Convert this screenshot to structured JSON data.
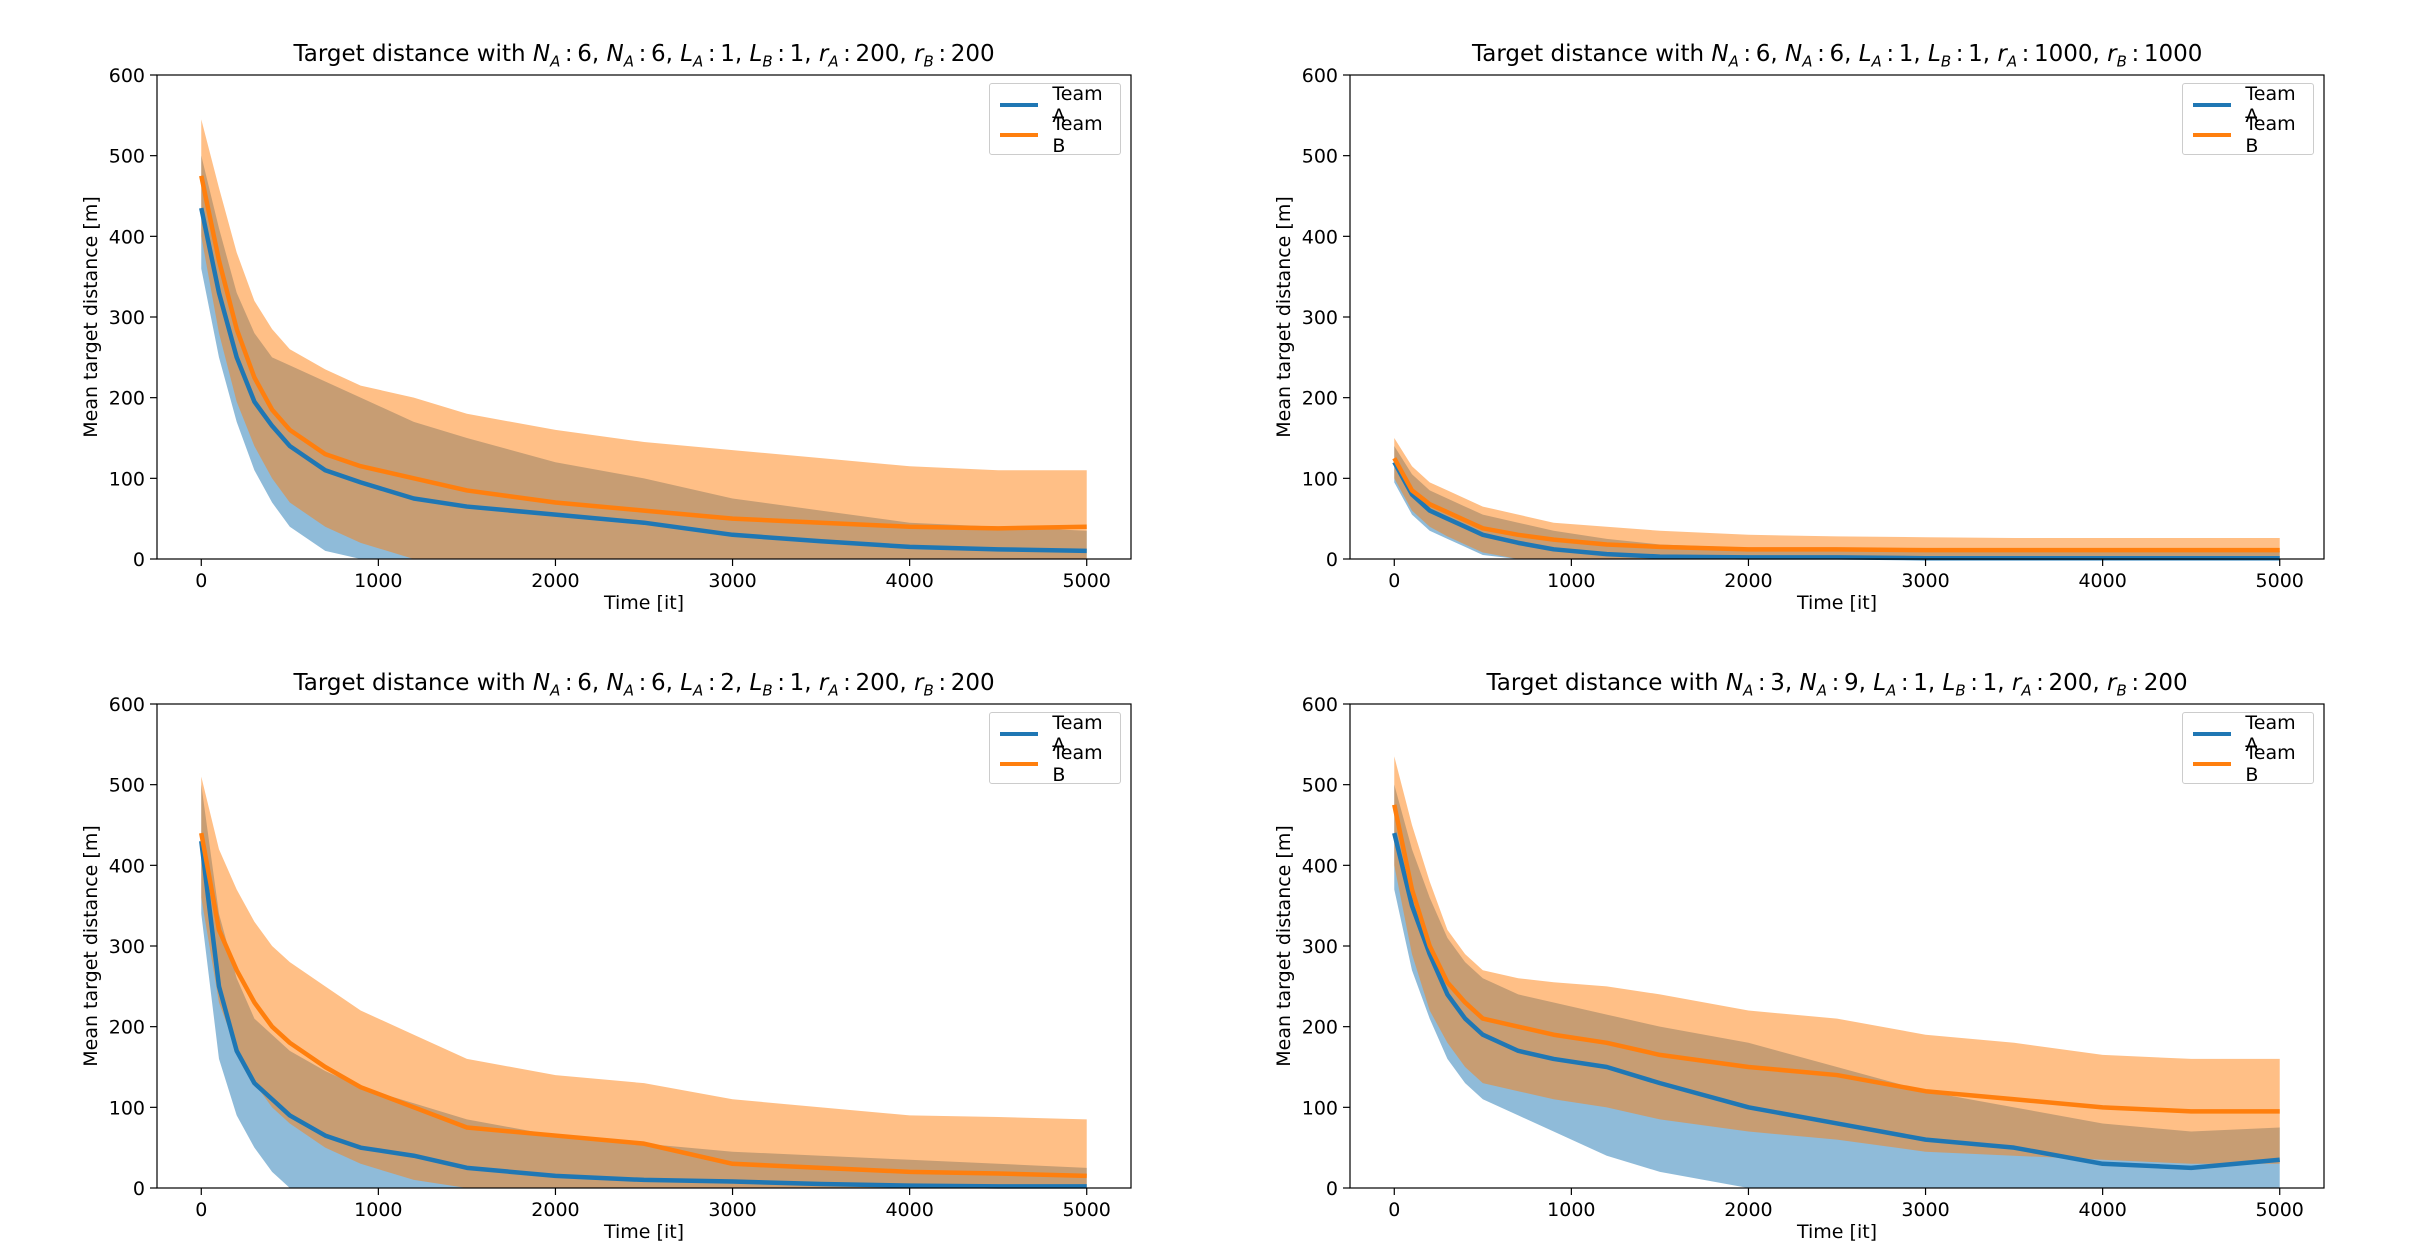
{
  "chart_data": [
    {
      "type": "line",
      "title": "Target distance with",
      "title_math": "N_A:6, N_A:6, L_A:1, L_B:1, r_A:200, r_B:200",
      "xlabel": "Time [it]",
      "ylabel": "Mean target distance [m]",
      "xlim": [
        -250,
        5250
      ],
      "ylim": [
        0,
        600
      ],
      "xticks": [
        0,
        1000,
        2000,
        3000,
        4000,
        5000
      ],
      "yticks": [
        0,
        100,
        200,
        300,
        400,
        500,
        600
      ],
      "legend": "top-right",
      "x": [
        0,
        100,
        200,
        300,
        400,
        500,
        700,
        900,
        1200,
        1500,
        2000,
        2500,
        3000,
        3500,
        4000,
        4500,
        5000
      ],
      "series": [
        {
          "name": "Team A",
          "color": "#1f77b4",
          "values": [
            435,
            330,
            250,
            195,
            165,
            140,
            110,
            95,
            75,
            65,
            55,
            45,
            30,
            22,
            15,
            12,
            10
          ],
          "lower": [
            360,
            250,
            170,
            110,
            70,
            40,
            10,
            0,
            0,
            0,
            0,
            0,
            0,
            0,
            0,
            0,
            0
          ],
          "upper": [
            500,
            410,
            330,
            280,
            250,
            240,
            220,
            200,
            170,
            150,
            120,
            100,
            75,
            60,
            45,
            40,
            35
          ]
        },
        {
          "name": "Team B",
          "color": "#ff7f0e",
          "values": [
            475,
            370,
            285,
            225,
            185,
            160,
            130,
            115,
            100,
            85,
            70,
            60,
            50,
            45,
            40,
            38,
            40
          ],
          "lower": [
            400,
            280,
            195,
            140,
            100,
            70,
            40,
            20,
            0,
            0,
            0,
            0,
            0,
            0,
            0,
            0,
            0
          ],
          "upper": [
            545,
            460,
            380,
            320,
            285,
            260,
            235,
            215,
            200,
            180,
            160,
            145,
            135,
            125,
            115,
            110,
            110
          ]
        }
      ]
    },
    {
      "type": "line",
      "title": "Target distance with",
      "title_math": "N_A:6, N_A:6, L_A:1, L_B:1, r_A:1000, r_B:1000",
      "xlabel": "Time [it]",
      "ylabel": "Mean target distance [m]",
      "xlim": [
        -250,
        5250
      ],
      "ylim": [
        0,
        600
      ],
      "xticks": [
        0,
        1000,
        2000,
        3000,
        4000,
        5000
      ],
      "yticks": [
        0,
        100,
        200,
        300,
        400,
        500,
        600
      ],
      "legend": "top-right",
      "x": [
        0,
        100,
        200,
        300,
        400,
        500,
        700,
        900,
        1200,
        1500,
        2000,
        2500,
        3000,
        3500,
        4000,
        4500,
        5000
      ],
      "series": [
        {
          "name": "Team A",
          "color": "#1f77b4",
          "values": [
            120,
            80,
            60,
            50,
            40,
            30,
            20,
            12,
            6,
            3,
            2,
            2,
            1,
            1,
            1,
            1,
            1
          ],
          "lower": [
            95,
            55,
            35,
            25,
            15,
            5,
            0,
            0,
            0,
            0,
            0,
            0,
            0,
            0,
            0,
            0,
            0
          ],
          "upper": [
            140,
            105,
            85,
            75,
            65,
            55,
            45,
            35,
            25,
            18,
            14,
            12,
            10,
            10,
            10,
            10,
            10
          ]
        },
        {
          "name": "Team B",
          "color": "#ff7f0e",
          "values": [
            125,
            85,
            68,
            58,
            48,
            38,
            30,
            24,
            18,
            15,
            12,
            12,
            11,
            11,
            11,
            11,
            11
          ],
          "lower": [
            100,
            60,
            40,
            28,
            18,
            8,
            0,
            0,
            0,
            0,
            0,
            0,
            0,
            0,
            0,
            0,
            0
          ],
          "upper": [
            150,
            115,
            95,
            85,
            75,
            65,
            55,
            45,
            40,
            35,
            30,
            28,
            27,
            26,
            26,
            26,
            26
          ]
        }
      ]
    },
    {
      "type": "line",
      "title": "Target distance with",
      "title_math": "N_A:6, N_A:6, L_A:2, L_B:1, r_A:200, r_B:200",
      "xlabel": "Time [it]",
      "ylabel": "Mean target distance [m]",
      "xlim": [
        -250,
        5250
      ],
      "ylim": [
        0,
        600
      ],
      "xticks": [
        0,
        1000,
        2000,
        3000,
        4000,
        5000
      ],
      "yticks": [
        0,
        100,
        200,
        300,
        400,
        500,
        600
      ],
      "legend": "top-right",
      "x": [
        0,
        100,
        200,
        300,
        400,
        500,
        700,
        900,
        1200,
        1500,
        2000,
        2500,
        3000,
        3500,
        4000,
        4500,
        5000
      ],
      "series": [
        {
          "name": "Team A",
          "color": "#1f77b4",
          "values": [
            430,
            250,
            170,
            130,
            110,
            90,
            65,
            50,
            40,
            25,
            15,
            10,
            8,
            5,
            3,
            2,
            2
          ],
          "lower": [
            340,
            160,
            90,
            50,
            20,
            0,
            0,
            0,
            0,
            0,
            0,
            0,
            0,
            0,
            0,
            0,
            0
          ],
          "upper": [
            500,
            340,
            260,
            210,
            190,
            170,
            145,
            125,
            105,
            85,
            65,
            55,
            45,
            40,
            35,
            30,
            25
          ]
        },
        {
          "name": "Team B",
          "color": "#ff7f0e",
          "values": [
            440,
            320,
            270,
            230,
            200,
            180,
            150,
            125,
            100,
            75,
            65,
            55,
            30,
            25,
            20,
            18,
            15
          ],
          "lower": [
            360,
            230,
            170,
            130,
            100,
            80,
            50,
            30,
            10,
            0,
            0,
            0,
            0,
            0,
            0,
            0,
            0
          ],
          "upper": [
            510,
            420,
            370,
            330,
            300,
            280,
            250,
            220,
            190,
            160,
            140,
            130,
            110,
            100,
            90,
            88,
            85
          ]
        }
      ]
    },
    {
      "type": "line",
      "title": "Target distance with",
      "title_math": "N_A:3, N_A:9, L_A:1, L_B:1, r_A:200, r_B:200",
      "xlabel": "Time [it]",
      "ylabel": "Mean target distance [m]",
      "xlim": [
        -250,
        5250
      ],
      "ylim": [
        0,
        600
      ],
      "xticks": [
        0,
        1000,
        2000,
        3000,
        4000,
        5000
      ],
      "yticks": [
        0,
        100,
        200,
        300,
        400,
        500,
        600
      ],
      "legend": "top-right",
      "x": [
        0,
        100,
        200,
        300,
        400,
        500,
        700,
        900,
        1200,
        1500,
        2000,
        2500,
        3000,
        3500,
        4000,
        4500,
        5000
      ],
      "series": [
        {
          "name": "Team A",
          "color": "#1f77b4",
          "values": [
            440,
            350,
            290,
            240,
            210,
            190,
            170,
            160,
            150,
            130,
            100,
            80,
            60,
            50,
            30,
            25,
            35
          ],
          "lower": [
            370,
            270,
            210,
            160,
            130,
            110,
            90,
            70,
            40,
            20,
            0,
            0,
            0,
            0,
            0,
            0,
            0
          ],
          "upper": [
            500,
            420,
            360,
            310,
            280,
            260,
            240,
            230,
            215,
            200,
            180,
            150,
            120,
            100,
            80,
            70,
            75
          ]
        },
        {
          "name": "Team B",
          "color": "#ff7f0e",
          "values": [
            475,
            370,
            300,
            255,
            230,
            210,
            200,
            190,
            180,
            165,
            150,
            140,
            120,
            110,
            100,
            95,
            95
          ],
          "lower": [
            400,
            290,
            220,
            180,
            150,
            130,
            120,
            110,
            100,
            85,
            70,
            60,
            45,
            40,
            35,
            30,
            30
          ],
          "upper": [
            535,
            450,
            380,
            320,
            290,
            270,
            260,
            255,
            250,
            240,
            220,
            210,
            190,
            180,
            165,
            160,
            160
          ]
        }
      ]
    }
  ]
}
